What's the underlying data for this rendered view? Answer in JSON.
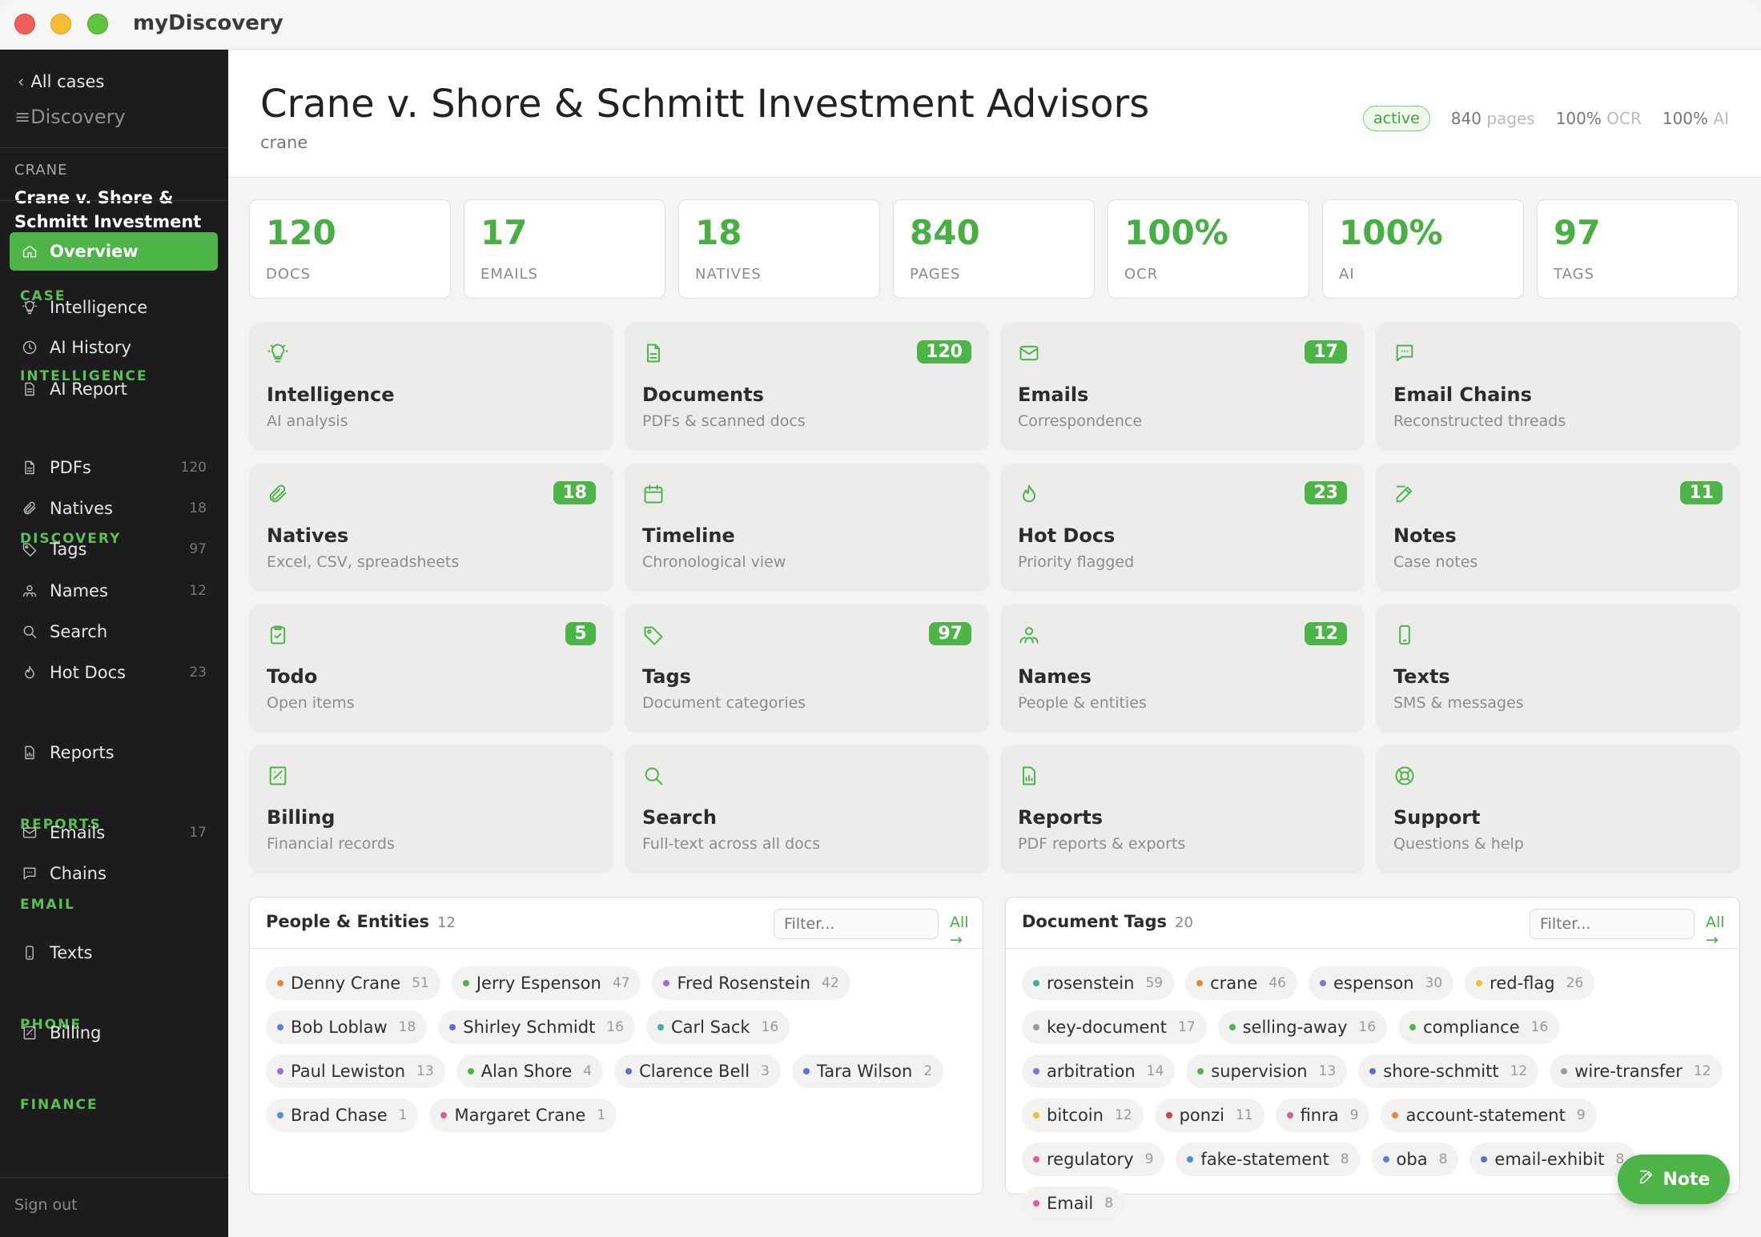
{
  "app": {
    "title": "myDiscovery"
  },
  "sidebar": {
    "back_label": "All cases",
    "brand": "≡Discovery",
    "case_code": "CRANE",
    "case_name": "Crane v. Shore & Schmitt Investment Advisors",
    "case_status": "active",
    "sections": [
      {
        "label": "CASE",
        "items": [
          {
            "label": "Overview",
            "icon": "home-icon",
            "count": "",
            "active": true
          }
        ]
      },
      {
        "label": "INTELLIGENCE",
        "items": [
          {
            "label": "Intelligence",
            "icon": "lightbulb-icon",
            "count": ""
          },
          {
            "label": "AI History",
            "icon": "clock-icon",
            "count": ""
          },
          {
            "label": "AI Report",
            "icon": "document-icon",
            "count": ""
          }
        ]
      },
      {
        "label": "DISCOVERY",
        "items": [
          {
            "label": "PDFs",
            "icon": "file-icon",
            "count": "120"
          },
          {
            "label": "Natives",
            "icon": "paperclip-icon",
            "count": "18"
          },
          {
            "label": "Tags",
            "icon": "tag-icon",
            "count": "97"
          },
          {
            "label": "Names",
            "icon": "people-icon",
            "count": "12"
          },
          {
            "label": "Search",
            "icon": "search-icon",
            "count": ""
          },
          {
            "label": "Hot Docs",
            "icon": "flame-icon",
            "count": "23"
          }
        ]
      },
      {
        "label": "REPORTS",
        "items": [
          {
            "label": "Reports",
            "icon": "report-icon",
            "count": ""
          }
        ]
      },
      {
        "label": "EMAIL",
        "items": [
          {
            "label": "Emails",
            "icon": "mail-icon",
            "count": "17"
          },
          {
            "label": "Chains",
            "icon": "chat-icon",
            "count": ""
          }
        ]
      },
      {
        "label": "PHONE",
        "items": [
          {
            "label": "Texts",
            "icon": "phone-icon",
            "count": ""
          }
        ]
      },
      {
        "label": "FINANCE",
        "items": [
          {
            "label": "Billing",
            "icon": "receipt-icon",
            "count": ""
          }
        ]
      }
    ],
    "sign_out": "Sign out"
  },
  "header": {
    "title": "Crane v. Shore & Schmitt Investment Advisors",
    "subtitle": "crane",
    "status": "active",
    "pages_value": "840",
    "pages_unit": "pages",
    "ocr_value": "100%",
    "ocr_unit": "OCR",
    "ai_value": "100%",
    "ai_unit": "AI"
  },
  "stats": [
    {
      "value": "120",
      "label": "DOCS"
    },
    {
      "value": "17",
      "label": "EMAILS"
    },
    {
      "value": "18",
      "label": "NATIVES"
    },
    {
      "value": "840",
      "label": "PAGES"
    },
    {
      "value": "100%",
      "label": "OCR"
    },
    {
      "value": "100%",
      "label": "AI"
    },
    {
      "value": "97",
      "label": "TAGS"
    }
  ],
  "tiles": [
    {
      "title": "Intelligence",
      "subtitle": "AI analysis",
      "icon": "lightbulb-icon",
      "badge": ""
    },
    {
      "title": "Documents",
      "subtitle": "PDFs & scanned docs",
      "icon": "file-icon",
      "badge": "120"
    },
    {
      "title": "Emails",
      "subtitle": "Correspondence",
      "icon": "mail-icon",
      "badge": "17"
    },
    {
      "title": "Email Chains",
      "subtitle": "Reconstructed threads",
      "icon": "chat-icon",
      "badge": ""
    },
    {
      "title": "Natives",
      "subtitle": "Excel, CSV, spreadsheets",
      "icon": "paperclip-icon",
      "badge": "18"
    },
    {
      "title": "Timeline",
      "subtitle": "Chronological view",
      "icon": "calendar-icon",
      "badge": ""
    },
    {
      "title": "Hot Docs",
      "subtitle": "Priority flagged",
      "icon": "flame-icon",
      "badge": "23"
    },
    {
      "title": "Notes",
      "subtitle": "Case notes",
      "icon": "edit-icon",
      "badge": "11"
    },
    {
      "title": "Todo",
      "subtitle": "Open items",
      "icon": "clipboard-check-icon",
      "badge": "5"
    },
    {
      "title": "Tags",
      "subtitle": "Document categories",
      "icon": "tag-icon",
      "badge": "97"
    },
    {
      "title": "Names",
      "subtitle": "People & entities",
      "icon": "people-icon",
      "badge": "12"
    },
    {
      "title": "Texts",
      "subtitle": "SMS & messages",
      "icon": "phone-icon",
      "badge": ""
    },
    {
      "title": "Billing",
      "subtitle": "Financial records",
      "icon": "receipt-icon",
      "badge": ""
    },
    {
      "title": "Search",
      "subtitle": "Full-text across all docs",
      "icon": "search-icon",
      "badge": ""
    },
    {
      "title": "Reports",
      "subtitle": "PDF reports & exports",
      "icon": "report-icon",
      "badge": ""
    },
    {
      "title": "Support",
      "subtitle": "Questions & help",
      "icon": "lifebuoy-icon",
      "badge": ""
    }
  ],
  "people": {
    "title": "People & Entities",
    "count": "12",
    "filter_placeholder": "Filter...",
    "all_label": "All →",
    "items": [
      {
        "name": "Denny Crane",
        "count": "51",
        "color": "#e8863a"
      },
      {
        "name": "Jerry Espenson",
        "count": "47",
        "color": "#4db548"
      },
      {
        "name": "Fred Rosenstein",
        "count": "42",
        "color": "#9b6fd6"
      },
      {
        "name": "Bob Loblaw",
        "count": "18",
        "color": "#5b7fe0"
      },
      {
        "name": "Shirley Schmidt",
        "count": "16",
        "color": "#5b6fd6"
      },
      {
        "name": "Carl Sack",
        "count": "16",
        "color": "#3bb0a8"
      },
      {
        "name": "Paul Lewiston",
        "count": "13",
        "color": "#9b6fd6"
      },
      {
        "name": "Alan Shore",
        "count": "4",
        "color": "#4db548"
      },
      {
        "name": "Clarence Bell",
        "count": "3",
        "color": "#5b6fd6"
      },
      {
        "name": "Tara Wilson",
        "count": "2",
        "color": "#5b6fd6"
      },
      {
        "name": "Brad Chase",
        "count": "1",
        "color": "#4a90e2"
      },
      {
        "name": "Margaret Crane",
        "count": "1",
        "color": "#e05b9e"
      }
    ]
  },
  "tags": {
    "title": "Document Tags",
    "count": "20",
    "filter_placeholder": "Filter...",
    "all_label": "All →",
    "items": [
      {
        "name": "rosenstein",
        "count": "59",
        "color": "#3bb0a8"
      },
      {
        "name": "crane",
        "count": "46",
        "color": "#e8863a"
      },
      {
        "name": "espenson",
        "count": "30",
        "color": "#8b6fe0"
      },
      {
        "name": "red-flag",
        "count": "26",
        "color": "#e8c43a"
      },
      {
        "name": "key-document",
        "count": "17",
        "color": "#9a9a9a"
      },
      {
        "name": "selling-away",
        "count": "16",
        "color": "#4db548"
      },
      {
        "name": "compliance",
        "count": "16",
        "color": "#4db548"
      },
      {
        "name": "arbitration",
        "count": "14",
        "color": "#8b6fe0"
      },
      {
        "name": "supervision",
        "count": "13",
        "color": "#4db548"
      },
      {
        "name": "shore-schmitt",
        "count": "12",
        "color": "#5b6fd6"
      },
      {
        "name": "wire-transfer",
        "count": "12",
        "color": "#9a9a9a"
      },
      {
        "name": "bitcoin",
        "count": "12",
        "color": "#e8c43a"
      },
      {
        "name": "ponzi",
        "count": "11",
        "color": "#d64040"
      },
      {
        "name": "finra",
        "count": "9",
        "color": "#e05b9e"
      },
      {
        "name": "account-statement",
        "count": "9",
        "color": "#e8863a"
      },
      {
        "name": "regulatory",
        "count": "9",
        "color": "#e05b9e"
      },
      {
        "name": "fake-statement",
        "count": "8",
        "color": "#4a90e2"
      },
      {
        "name": "oba",
        "count": "8",
        "color": "#5b7fe0"
      },
      {
        "name": "email-exhibit",
        "count": "8",
        "color": "#5b6fd6"
      },
      {
        "name": "Email",
        "count": "8",
        "color": "#e05b9e"
      }
    ]
  },
  "fab": {
    "label": "Note",
    "icon": "edit-icon"
  }
}
